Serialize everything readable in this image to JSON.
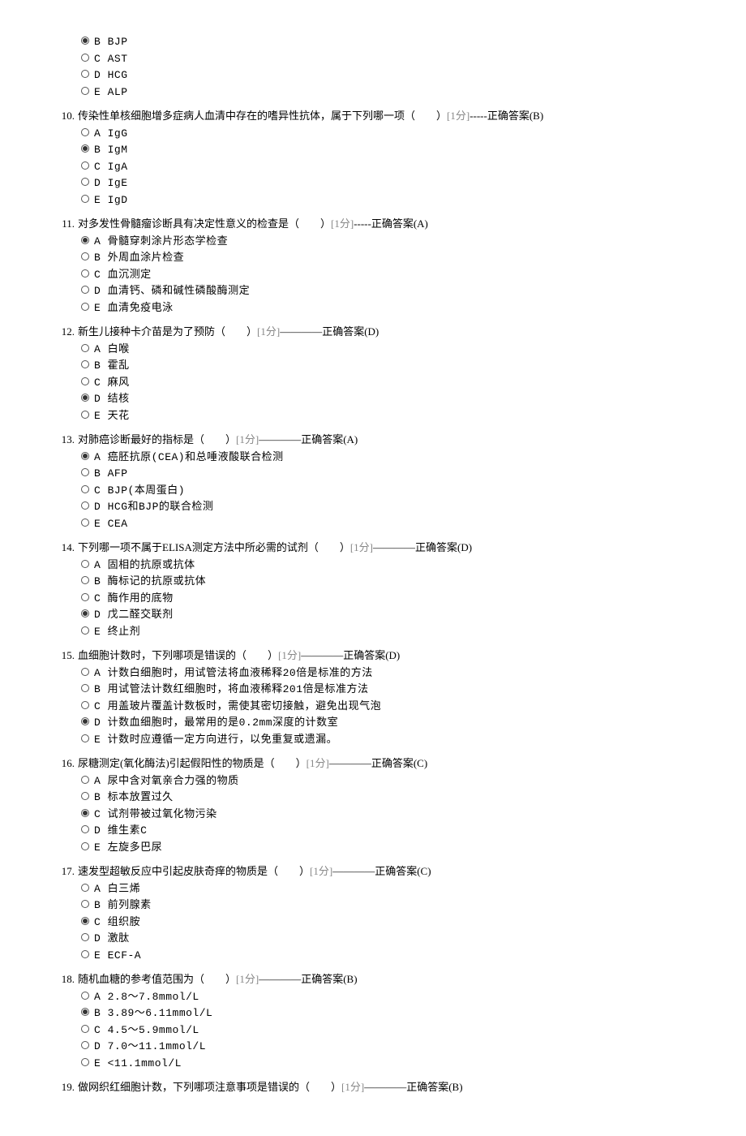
{
  "points_label": "[1分]",
  "answer_prefix": "————正确答案",
  "answer_prefix_alt": "-----正确答案",
  "partial_options": [
    {
      "letter": "B",
      "text": "BJP",
      "selected": true
    },
    {
      "letter": "C",
      "text": "AST",
      "selected": false
    },
    {
      "letter": "D",
      "text": "HCG",
      "selected": false
    },
    {
      "letter": "E",
      "text": "ALP",
      "selected": false
    }
  ],
  "questions": [
    {
      "num": "10.",
      "text": "传染性单核细胞增多症病人血清中存在的嗜异性抗体，属于下列哪一项（　　）",
      "answer": "(B)",
      "alt_prefix": true,
      "options": [
        {
          "letter": "A",
          "text": "IgG",
          "selected": false
        },
        {
          "letter": "B",
          "text": "IgM",
          "selected": true
        },
        {
          "letter": "C",
          "text": "IgA",
          "selected": false
        },
        {
          "letter": "D",
          "text": "IgE",
          "selected": false
        },
        {
          "letter": "E",
          "text": "IgD",
          "selected": false
        }
      ]
    },
    {
      "num": "11.",
      "text": "对多发性骨髓瘤诊断具有决定性意义的检查是（　　）",
      "answer": "(A)",
      "alt_prefix": true,
      "options": [
        {
          "letter": "A",
          "text": "骨髓穿刺涂片形态学检查",
          "selected": true
        },
        {
          "letter": "B",
          "text": "外周血涂片检查",
          "selected": false
        },
        {
          "letter": "C",
          "text": "血沉测定",
          "selected": false
        },
        {
          "letter": "D",
          "text": "血清钙、磷和碱性磷酸酶测定",
          "selected": false
        },
        {
          "letter": "E",
          "text": "血清免疫电泳",
          "selected": false
        }
      ]
    },
    {
      "num": "12.",
      "text": "新生儿接种卡介苗是为了预防（　　）",
      "answer": "(D)",
      "options": [
        {
          "letter": "A",
          "text": "白喉",
          "selected": false
        },
        {
          "letter": "B",
          "text": "霍乱",
          "selected": false
        },
        {
          "letter": "C",
          "text": "麻风",
          "selected": false
        },
        {
          "letter": "D",
          "text": "结核",
          "selected": true
        },
        {
          "letter": "E",
          "text": "天花",
          "selected": false
        }
      ]
    },
    {
      "num": "13.",
      "text": "对肺癌诊断最好的指标是（　　）",
      "answer": "(A)",
      "options": [
        {
          "letter": "A",
          "text": "癌胚抗原(CEA)和总唾液酸联合检测",
          "selected": true
        },
        {
          "letter": "B",
          "text": "AFP",
          "selected": false
        },
        {
          "letter": "C",
          "text": "BJP(本周蛋白)",
          "selected": false
        },
        {
          "letter": "D",
          "text": "HCG和BJP的联合检测",
          "selected": false
        },
        {
          "letter": "E",
          "text": "CEA",
          "selected": false
        }
      ]
    },
    {
      "num": "14.",
      "text": "下列哪一项不属于ELISA测定方法中所必需的试剂（　　）",
      "answer": "(D)",
      "options": [
        {
          "letter": "A",
          "text": "固相的抗原或抗体",
          "selected": false
        },
        {
          "letter": "B",
          "text": "酶标记的抗原或抗体",
          "selected": false
        },
        {
          "letter": "C",
          "text": "酶作用的底物",
          "selected": false
        },
        {
          "letter": "D",
          "text": "戊二醛交联剂",
          "selected": true
        },
        {
          "letter": "E",
          "text": "终止剂",
          "selected": false
        }
      ]
    },
    {
      "num": "15.",
      "text": "血细胞计数时，下列哪项是错误的（　　）",
      "answer": "(D)",
      "options": [
        {
          "letter": "A",
          "text": "计数白细胞时，用试管法将血液稀释20倍是标准的方法",
          "selected": false
        },
        {
          "letter": "B",
          "text": "用试管法计数红细胞时，将血液稀释201倍是标准方法",
          "selected": false
        },
        {
          "letter": "C",
          "text": "用盖玻片覆盖计数板时，需使其密切接触，避免出现气泡",
          "selected": false
        },
        {
          "letter": "D",
          "text": "计数血细胞时，最常用的是0.2mm深度的计数室",
          "selected": true
        },
        {
          "letter": "E",
          "text": "计数时应遵循一定方向进行，以免重复或遗漏。",
          "selected": false
        }
      ]
    },
    {
      "num": "16.",
      "text": "尿糖测定(氧化酶法)引起假阳性的物质是（　　）",
      "answer": "(C)",
      "options": [
        {
          "letter": "A",
          "text": "尿中含对氧亲合力强的物质",
          "selected": false
        },
        {
          "letter": "B",
          "text": "标本放置过久",
          "selected": false
        },
        {
          "letter": "C",
          "text": "试剂带被过氧化物污染",
          "selected": true
        },
        {
          "letter": "D",
          "text": "维生素C",
          "selected": false
        },
        {
          "letter": "E",
          "text": "左旋多巴尿",
          "selected": false
        }
      ]
    },
    {
      "num": "17.",
      "text": "速发型超敏反应中引起皮肤奇痒的物质是（　　）",
      "answer": "(C)",
      "options": [
        {
          "letter": "A",
          "text": "白三烯",
          "selected": false
        },
        {
          "letter": "B",
          "text": "前列腺素",
          "selected": false
        },
        {
          "letter": "C",
          "text": "组织胺",
          "selected": true
        },
        {
          "letter": "D",
          "text": "激肽",
          "selected": false
        },
        {
          "letter": "E",
          "text": "ECF-A",
          "selected": false
        }
      ]
    },
    {
      "num": "18.",
      "text": "随机血糖的参考值范围为（　　）",
      "answer": "(B)",
      "options": [
        {
          "letter": "A",
          "text": "2.8～7.8mmol/L",
          "selected": false
        },
        {
          "letter": "B",
          "text": "3.89～6.11mmol/L",
          "selected": true
        },
        {
          "letter": "C",
          "text": "4.5～5.9mmol/L",
          "selected": false
        },
        {
          "letter": "D",
          "text": "7.0～11.1mmol/L",
          "selected": false
        },
        {
          "letter": "E",
          "text": "<11.1mmol/L",
          "selected": false
        }
      ]
    },
    {
      "num": "19.",
      "text": "做网织红细胞计数，下列哪项注意事项是错误的（　　）",
      "answer": "(B)",
      "options": []
    }
  ]
}
